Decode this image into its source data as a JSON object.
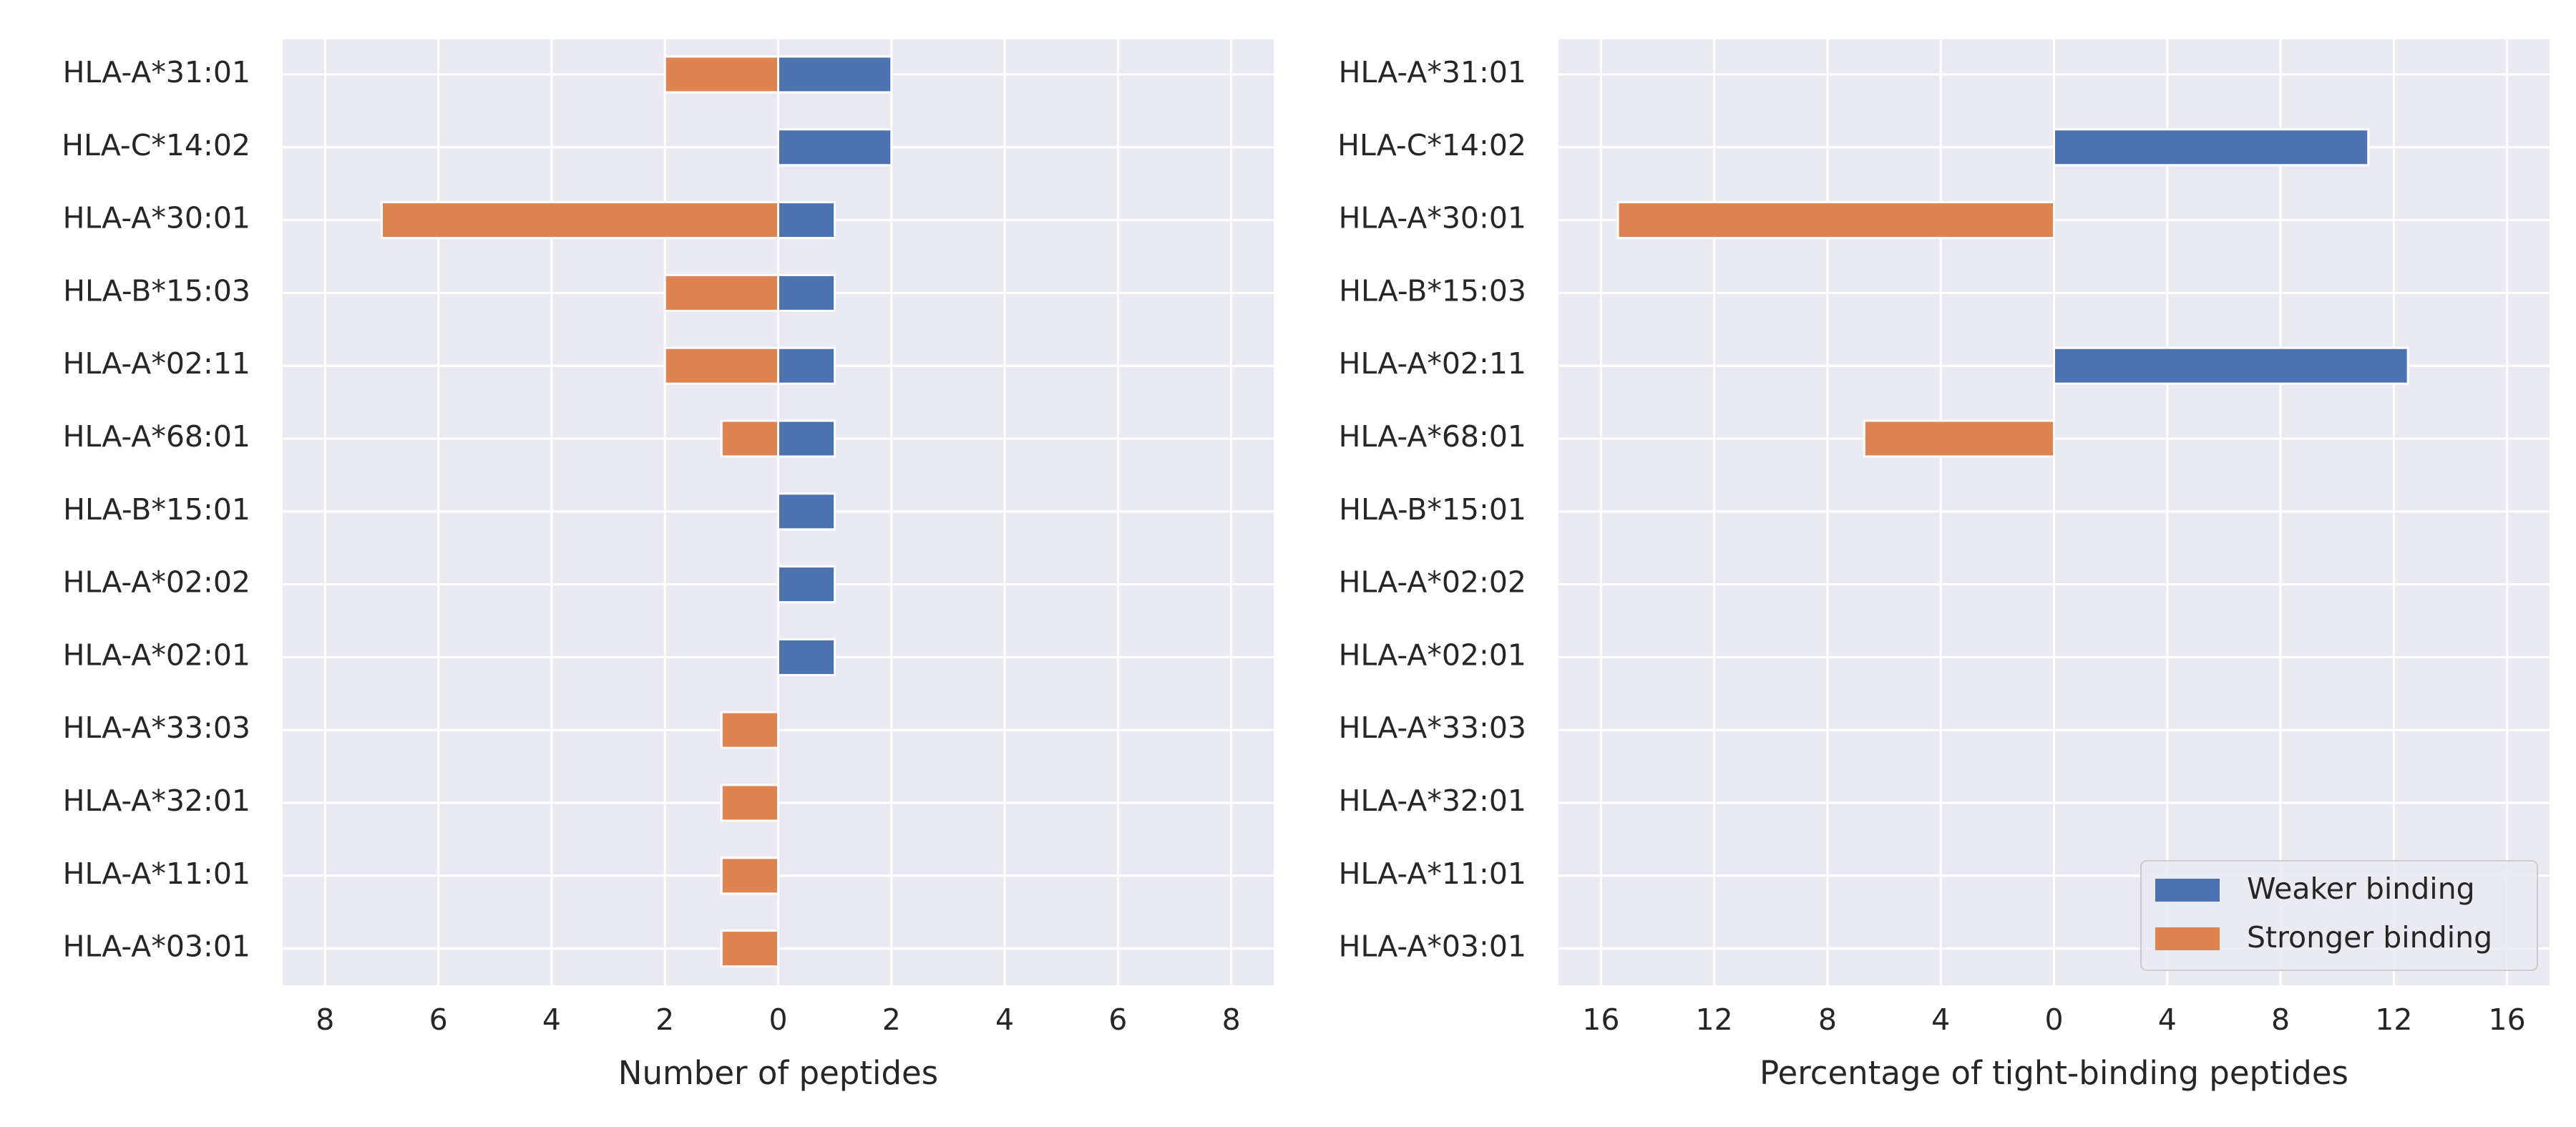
{
  "colors": {
    "weaker": "#4c72b0",
    "stronger": "#dd8452",
    "plot_background": "#eaeaf2",
    "grid": "#ffffff",
    "text": "#262626"
  },
  "chart_data": [
    {
      "type": "bar",
      "orientation": "horizontal",
      "xlabel": "Number of peptides",
      "xlim": [
        -8.75,
        8.75
      ],
      "xticks": [
        -8,
        -6,
        -4,
        -2,
        0,
        2,
        4,
        6,
        8
      ],
      "tick_labels": [
        "8",
        "6",
        "4",
        "2",
        "0",
        "2",
        "4",
        "6",
        "8"
      ],
      "grid": true,
      "categories": [
        "HLA-A*31:01",
        "HLA-C*14:02",
        "HLA-A*30:01",
        "HLA-B*15:03",
        "HLA-A*02:11",
        "HLA-A*68:01",
        "HLA-B*15:01",
        "HLA-A*02:02",
        "HLA-A*02:01",
        "HLA-A*33:03",
        "HLA-A*32:01",
        "HLA-A*11:01",
        "HLA-A*03:01"
      ],
      "series": [
        {
          "name": "Weaker binding",
          "values": [
            2,
            2,
            1,
            1,
            1,
            1,
            1,
            1,
            1,
            0,
            0,
            0,
            0
          ]
        },
        {
          "name": "Stronger binding",
          "values": [
            -2,
            0,
            -7,
            -2,
            -2,
            -1,
            0,
            0,
            0,
            -1,
            -1,
            -1,
            -1
          ]
        }
      ]
    },
    {
      "type": "bar",
      "orientation": "horizontal",
      "xlabel": "Percentage of tight-binding peptides",
      "xlim": [
        -17.5,
        17.5
      ],
      "xticks": [
        -16,
        -12,
        -8,
        -4,
        0,
        4,
        8,
        12,
        16
      ],
      "tick_labels": [
        "16",
        "12",
        "8",
        "4",
        "0",
        "4",
        "8",
        "12",
        "16"
      ],
      "grid": true,
      "legend_position": "bottom-right",
      "categories": [
        "HLA-A*31:01",
        "HLA-C*14:02",
        "HLA-A*30:01",
        "HLA-B*15:03",
        "HLA-A*02:11",
        "HLA-A*68:01",
        "HLA-B*15:01",
        "HLA-A*02:02",
        "HLA-A*02:01",
        "HLA-A*33:03",
        "HLA-A*32:01",
        "HLA-A*11:01",
        "HLA-A*03:01"
      ],
      "series": [
        {
          "name": "Weaker binding",
          "values": [
            0,
            11.1,
            0,
            0,
            12.5,
            0,
            0,
            0,
            0,
            0,
            0,
            0,
            0
          ]
        },
        {
          "name": "Stronger binding",
          "values": [
            0,
            0,
            -15.4,
            0,
            0,
            -6.7,
            0,
            0,
            0,
            0,
            0,
            0,
            0
          ]
        }
      ]
    }
  ],
  "legend": {
    "items": [
      {
        "label": "Weaker binding",
        "color": "#4c72b0"
      },
      {
        "label": "Stronger binding",
        "color": "#dd8452"
      }
    ]
  }
}
